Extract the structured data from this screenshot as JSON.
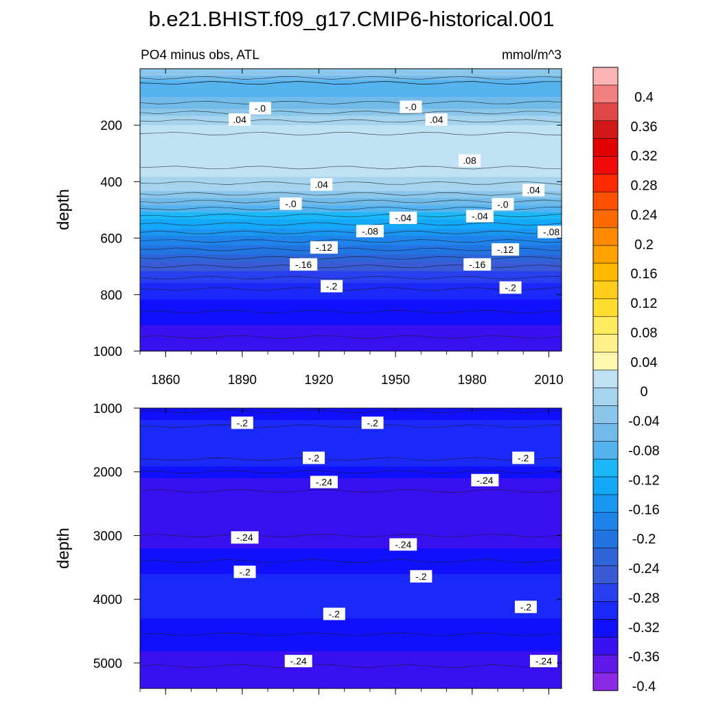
{
  "title": "b.e21.BHIST.f09_g17.CMIP6-historical.001",
  "colorbar": {
    "labels": [
      "0.4",
      "0.36",
      "0.32",
      "0.28",
      "0.24",
      "0.2",
      "0.16",
      "0.12",
      "0.08",
      "0.04",
      "0",
      "-0.04",
      "-0.08",
      "-0.12",
      "-0.16",
      "-0.2",
      "-0.24",
      "-0.28",
      "-0.32",
      "-0.36",
      "-0.4"
    ],
    "colors": [
      "#fcb4b4",
      "#f08080",
      "#e04848",
      "#d01818",
      "#e00000",
      "#f00a0a",
      "#ff2a00",
      "#ff4f00",
      "#ff6a00",
      "#ff8a00",
      "#ffa200",
      "#ffb800",
      "#ffcd1a",
      "#ffde30",
      "#ffe95e",
      "#fff08a",
      "#fff9b0",
      "#c0e0f4",
      "#a6d4ee",
      "#8cc6ea",
      "#72baea",
      "#55b4f0",
      "#1ab8f8",
      "#14a8f8",
      "#1896f0",
      "#1e84ea",
      "#2274e0",
      "#2e64d8",
      "#3a5ad6",
      "#2a3ff0",
      "#1a28f8",
      "#1010ff",
      "#3a10f0",
      "#6018e8",
      "#8a2ae6"
    ]
  },
  "chart_data": [
    {
      "type": "heatmap",
      "subtitle_left": "PO4 minus obs, ATL",
      "subtitle_right": "mmol/m^3",
      "ylabel": "depth",
      "xlim": [
        1850,
        2015
      ],
      "ylim": [
        0,
        1000
      ],
      "xticks": [
        1860,
        1890,
        1920,
        1950,
        1980,
        2010
      ],
      "yticks": [
        200,
        400,
        600,
        800,
        1000
      ],
      "depth_profile": [
        {
          "depth": 15,
          "value": 0.02
        },
        {
          "depth": 50,
          "value": -0.02
        },
        {
          "depth": 100,
          "value": -0.01
        },
        {
          "depth": 140,
          "value": 0.01
        },
        {
          "depth": 200,
          "value": 0.05
        },
        {
          "depth": 260,
          "value": 0.07
        },
        {
          "depth": 320,
          "value": 0.07
        },
        {
          "depth": 380,
          "value": 0.05
        },
        {
          "depth": 430,
          "value": 0.03
        },
        {
          "depth": 470,
          "value": 0.0
        },
        {
          "depth": 520,
          "value": -0.04
        },
        {
          "depth": 580,
          "value": -0.08
        },
        {
          "depth": 640,
          "value": -0.12
        },
        {
          "depth": 700,
          "value": -0.16
        },
        {
          "depth": 780,
          "value": -0.2
        },
        {
          "depth": 860,
          "value": -0.22
        },
        {
          "depth": 950,
          "value": -0.24
        }
      ],
      "contour_labels": [
        {
          "text": "-.0",
          "x": 1897,
          "y": 140
        },
        {
          "text": "-.0",
          "x": 1956,
          "y": 135
        },
        {
          "text": ".04",
          "x": 1889,
          "y": 180
        },
        {
          "text": ".04",
          "x": 1966,
          "y": 180
        },
        {
          "text": ".08",
          "x": 1979,
          "y": 325
        },
        {
          "text": ".04",
          "x": 1921,
          "y": 410
        },
        {
          "text": ".04",
          "x": 2004,
          "y": 430
        },
        {
          "text": "-.0",
          "x": 1909,
          "y": 478
        },
        {
          "text": "-.0",
          "x": 1992,
          "y": 480
        },
        {
          "text": "-.04",
          "x": 1953,
          "y": 528
        },
        {
          "text": "-.04",
          "x": 1983,
          "y": 522
        },
        {
          "text": "-.08",
          "x": 1940,
          "y": 575
        },
        {
          "text": "-.08",
          "x": 2011,
          "y": 578
        },
        {
          "text": "-.12",
          "x": 1922,
          "y": 633
        },
        {
          "text": "-.12",
          "x": 1993,
          "y": 640
        },
        {
          "text": "-.16",
          "x": 1914,
          "y": 693
        },
        {
          "text": "-.16",
          "x": 1982,
          "y": 693
        },
        {
          "text": "-.2",
          "x": 1925,
          "y": 770
        },
        {
          "text": "-.2",
          "x": 1995,
          "y": 775
        }
      ]
    },
    {
      "type": "heatmap",
      "ylabel": "depth",
      "xlim": [
        1850,
        2015
      ],
      "ylim": [
        1000,
        5400
      ],
      "xticks": [
        1860,
        1890,
        1920,
        1950,
        1980,
        2010
      ],
      "yticks": [
        1000,
        2000,
        3000,
        4000,
        5000
      ],
      "depth_profile": [
        {
          "depth": 1050,
          "value": -0.22
        },
        {
          "depth": 1400,
          "value": -0.19
        },
        {
          "depth": 1800,
          "value": -0.2
        },
        {
          "depth": 2100,
          "value": -0.23
        },
        {
          "depth": 2500,
          "value": -0.25
        },
        {
          "depth": 3000,
          "value": -0.24
        },
        {
          "depth": 3400,
          "value": -0.22
        },
        {
          "depth": 3800,
          "value": -0.2
        },
        {
          "depth": 4300,
          "value": -0.21
        },
        {
          "depth": 4800,
          "value": -0.23
        },
        {
          "depth": 5300,
          "value": -0.25
        }
      ],
      "contour_labels": [
        {
          "text": "-.2",
          "x": 1890,
          "y": 1230
        },
        {
          "text": "-.2",
          "x": 1941,
          "y": 1230
        },
        {
          "text": "-.2",
          "x": 1918,
          "y": 1780
        },
        {
          "text": "-.2",
          "x": 2000,
          "y": 1780
        },
        {
          "text": "-.24",
          "x": 1922,
          "y": 2160
        },
        {
          "text": "-.24",
          "x": 1985,
          "y": 2130
        },
        {
          "text": "-.24",
          "x": 1891,
          "y": 3030
        },
        {
          "text": "-.24",
          "x": 1953,
          "y": 3140
        },
        {
          "text": "-.2",
          "x": 1891,
          "y": 3570
        },
        {
          "text": "-.2",
          "x": 1960,
          "y": 3640
        },
        {
          "text": "-.2",
          "x": 2001,
          "y": 4120
        },
        {
          "text": "-.2",
          "x": 1926,
          "y": 4230
        },
        {
          "text": "-.24",
          "x": 1912,
          "y": 4970
        },
        {
          "text": "-.24",
          "x": 2008,
          "y": 4970
        }
      ]
    }
  ]
}
